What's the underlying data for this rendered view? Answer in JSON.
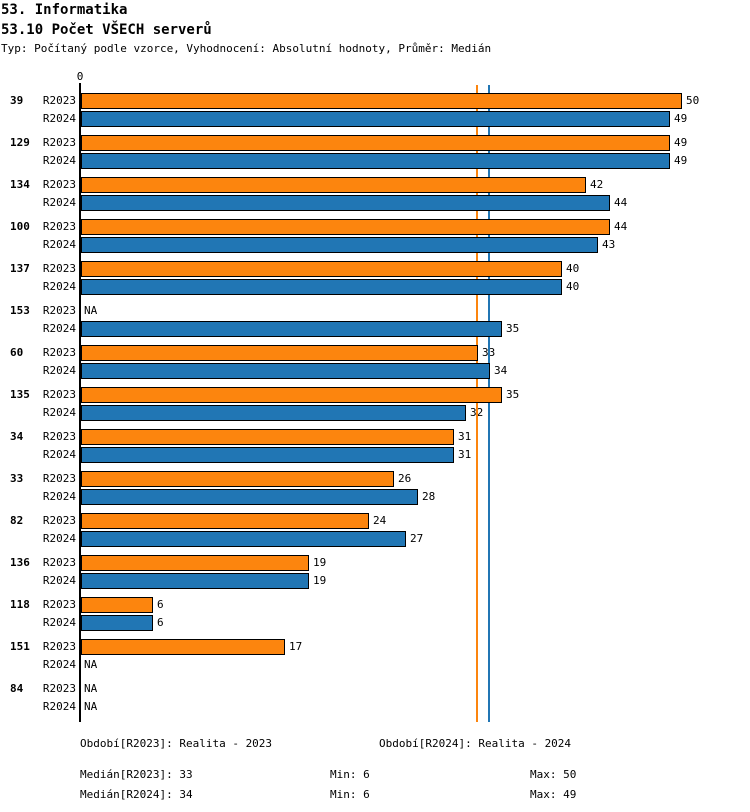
{
  "header": {
    "title1": "53. Informatika",
    "title2": "53.10 Počet VŠECH serverů",
    "subtitle": "Typ: Počítaný podle vzorce, Vyhodnocení: Absolutní hodnoty, Průměr: Medián"
  },
  "chart_data": {
    "type": "bar",
    "orientation": "horizontal",
    "title": "53.10 Počet VŠECH serverů",
    "zero_tick_label": "0",
    "na_label": "NA",
    "value_range": [
      0,
      50
    ],
    "grid": false,
    "categories": [
      "39",
      "129",
      "134",
      "100",
      "137",
      "153",
      "60",
      "135",
      "34",
      "33",
      "82",
      "136",
      "118",
      "151",
      "84"
    ],
    "series": [
      {
        "name": "R2023",
        "color": "#FC850E",
        "values": [
          50,
          49,
          42,
          44,
          40,
          null,
          33,
          35,
          31,
          26,
          24,
          19,
          6,
          17,
          null
        ]
      },
      {
        "name": "R2024",
        "color": "#2176B4",
        "values": [
          49,
          49,
          44,
          43,
          40,
          35,
          34,
          32,
          31,
          28,
          27,
          19,
          6,
          null,
          null
        ]
      }
    ],
    "reference_lines": [
      {
        "name": "median-r2023",
        "value": 33,
        "color": "#FC850E"
      },
      {
        "name": "median-r2024",
        "value": 34,
        "color": "#2176B4"
      }
    ]
  },
  "footer": {
    "period_2023": "Období[R2023]: Realita - 2023",
    "period_2024": "Období[R2024]: Realita - 2024",
    "median_2023": "Medián[R2023]: 33",
    "min_2023": "Min: 6",
    "max_2023": "Max: 50",
    "median_2024": "Medián[R2024]: 34",
    "min_2024": "Min: 6",
    "max_2024": "Max: 49"
  }
}
